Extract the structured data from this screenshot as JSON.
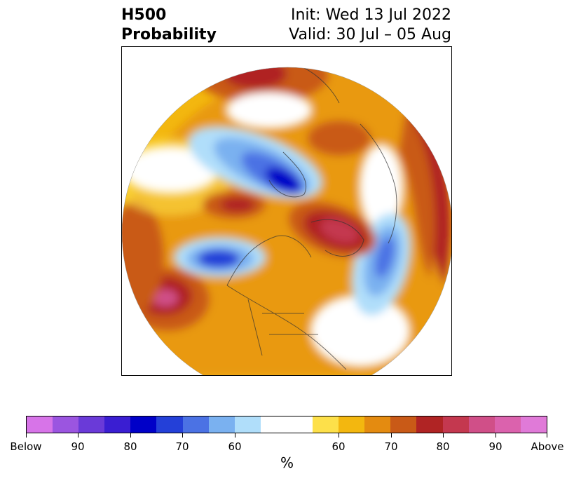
{
  "title": {
    "left_line1": "H500",
    "left_line2": "Probability",
    "right_line1": "Init: Wed 13 Jul 2022",
    "right_line2": "Valid: 30 Jul – 05 Aug"
  },
  "colorbar": {
    "colors": [
      "#d774e8",
      "#9b55e0",
      "#6a3ad8",
      "#3a1ed2",
      "#0000c8",
      "#2440d8",
      "#4b72e4",
      "#7ab1f0",
      "#b0defa",
      "#ffffff",
      "#ffffff",
      "#fde04a",
      "#f3b70f",
      "#e48b10",
      "#c95a17",
      "#b02424",
      "#c4384f",
      "#d04f88",
      "#db62ad",
      "#e07ad8"
    ],
    "tick_labels": [
      "Below",
      "90",
      "80",
      "70",
      "60",
      "60",
      "70",
      "80",
      "90",
      "Above"
    ],
    "tick_fractions": [
      0,
      0.1,
      0.2,
      0.3,
      0.4,
      0.6,
      0.7,
      0.8,
      0.9,
      1.0
    ],
    "unit_label": "%"
  }
}
